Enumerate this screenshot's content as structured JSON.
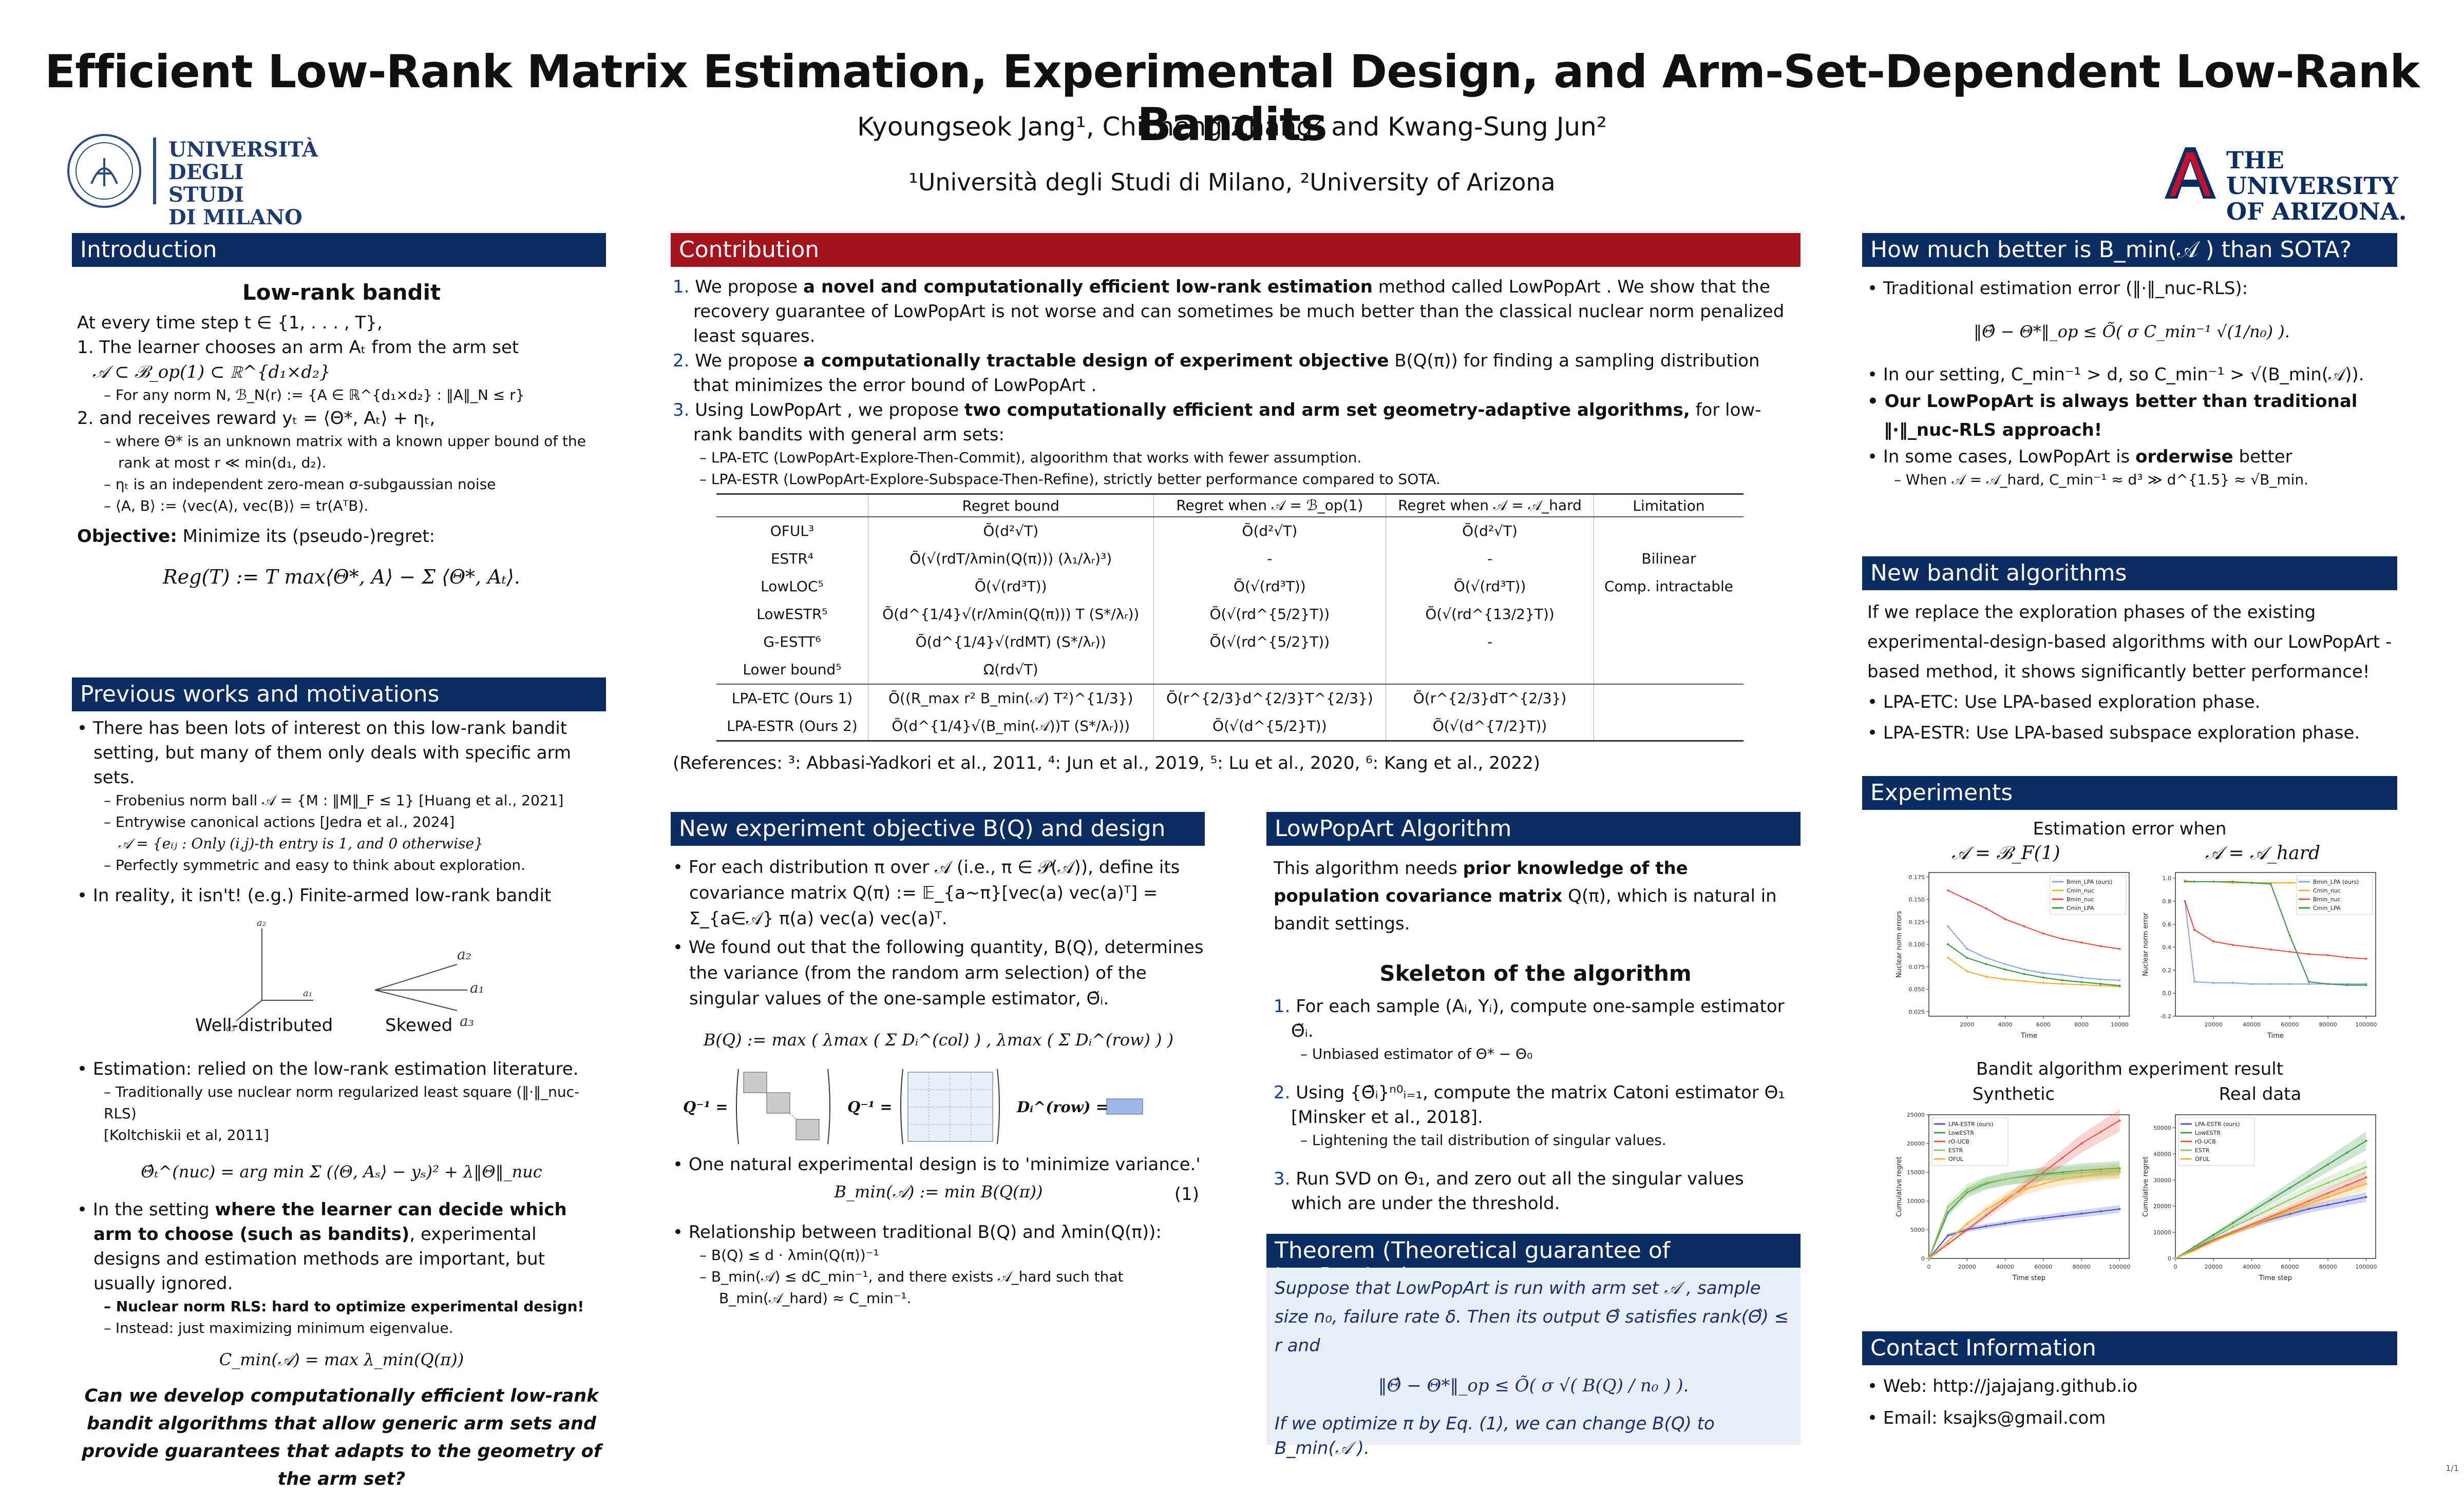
{
  "title": "Efficient Low-Rank Matrix Estimation, Experimental Design, and Arm-Set-Dependent Low-Rank Bandits",
  "authors": "Kyoungseok Jang¹, Chicheng Zhang² and Kwang-Sung Jun²",
  "affiliations": "¹Università degli Studi di Milano, ²University of Arizona",
  "logos": {
    "milano": [
      "UNIVERSITÀ",
      "DEGLI STUDI",
      "DI MILANO"
    ],
    "arizona": [
      "THE UNIVERSITY",
      "OF ARIZONA."
    ]
  },
  "intro": {
    "head": "Introduction",
    "subtitle": "Low-rank bandit",
    "lines": [
      "At every time step t ∈ {1, . . . , T},",
      "1. The learner chooses an arm Aₜ from the arm set",
      "𝒜 ⊂ ℬ_op(1) ⊂ ℝ^{d₁×d₂}",
      "– For any norm N, ℬ_N(r) := {A ∈ ℝ^{d₁×d₂} : ‖A‖_N ≤ r}",
      "2. and receives reward yₜ = ⟨Θ*, Aₜ⟩ + ηₜ,",
      "– where Θ* is an unknown matrix with a known upper bound of the",
      "rank at most r ≪ min(d₁, d₂).",
      "– ηₜ is an independent zero-mean σ-subgaussian noise",
      "– ⟨A, B⟩ := ⟨vec(A), vec(B)⟩ = tr(AᵀB)."
    ],
    "objective_label": "Objective:",
    "objective_text": " Minimize its (pseudo-)regret:",
    "regret_formula": "Reg(T) := T max⟨Θ*, A⟩ − Σ ⟨Θ*, Aₜ⟩."
  },
  "prev": {
    "head": "Previous works and motivations",
    "b1": "There has been lots of interest on this low-rank bandit setting, but many of them only deals with specific arm sets.",
    "b1_subs": [
      "– Frobenius norm ball 𝒜 = {M : ‖M‖_F ≤ 1} [Huang et al., 2021]",
      "– Entrywise canonical actions [Jedra et al., 2024]",
      "𝒜 = {eᵢⱼ : Only (i,j)-th entry is 1, and 0 otherwise}",
      "– Perfectly symmetric and easy to think about exploration."
    ],
    "b2": "In reality, it isn't! (e.g.) Finite-armed low-rank bandit",
    "fig_labels": [
      "Well-distributed",
      "Skewed"
    ],
    "fig_marks": [
      "a₂",
      "a₁",
      "a₃",
      "a₂",
      "a₁",
      "a₃"
    ],
    "b3": "Estimation: relied on the low-rank estimation literature.",
    "b3_subs": [
      "– Traditionally use nuclear norm regularized least square (‖·‖_nuc-RLS)",
      "[Koltchiskii et al, 2011]"
    ],
    "nuc_formula": "Θ̂ₜ^(nuc) = arg min Σ (⟨Θ, Aₛ⟩ − yₛ)² + λ‖Θ‖_nuc",
    "b4_pre": "In the setting ",
    "b4_bold": "where the learner can decide which arm to choose (such as bandits)",
    "b4_post": ", experimental designs and estimation methods are important, but usually ignored.",
    "b4_sub1": "– Nuclear norm RLS: hard to optimize experimental design!",
    "b4_sub2": "– Instead: just maximizing minimum eigenvalue.",
    "cmin_formula": "C_min(𝒜) = max λ_min(Q(π))",
    "question": "Can we develop computationally efficient low-rank bandit algorithms that allow generic arm sets and provide guarantees that adapts to the geometry of the arm set?"
  },
  "contrib": {
    "head": "Contribution",
    "items": [
      {
        "n": "1.",
        "pre": "We propose ",
        "bold": "a novel and computationally efficient low-rank estimation",
        "post": " method called LowPopArt . We show that the recovery guarantee of LowPopArt  is not worse and can sometimes be much better than the classical nuclear norm penalized least squares."
      },
      {
        "n": "2.",
        "pre": "We propose ",
        "bold": "a computationally tractable design of experiment objective",
        "post": " B(Q(π)) for finding a sampling distribution that minimizes the error bound of LowPopArt ."
      },
      {
        "n": "3.",
        "pre": "Using LowPopArt , we propose ",
        "bold": "two computationally efficient and arm set geometry-adaptive algorithms,",
        "post": " for low-rank bandits with general arm sets:"
      }
    ],
    "subs": [
      "– LPA-ETC (LowPopArt-Explore-Then-Commit), algoorithm that works with fewer assumption.",
      "– LPA-ESTR (LowPopArt-Explore-Subspace-Then-Refine), strictly better performance compared to SOTA."
    ],
    "table": {
      "headers": [
        "",
        "Regret bound",
        "Regret when 𝒜 = ℬ_op(1)",
        "Regret when 𝒜 = 𝒜_hard",
        "Limitation"
      ],
      "rows": [
        [
          "OFUL³",
          "Õ(d²√T)",
          "Õ(d²√T)",
          "Õ(d²√T)",
          ""
        ],
        [
          "ESTR⁴",
          "Õ(√(rdT/λmin(Q(π))) (λ₁/λᵣ)³)",
          "-",
          "-",
          "Bilinear"
        ],
        [
          "LowLOC⁵",
          "Õ(√(rd³T))",
          "Õ(√(rd³T))",
          "Õ(√(rd³T))",
          "Comp. intractable"
        ],
        [
          "LowESTR⁵",
          "Õ(d^{1/4}√(r/λmin(Q(π))) T (S*/λᵣ))",
          "Õ(√(rd^{5/2}T))",
          "Õ(√(rd^{13/2}T))",
          ""
        ],
        [
          "G-ESTT⁶",
          "Õ(d^{1/4}√(rdMT) (S*/λᵣ))",
          "Õ(√(rd^{5/2}T))",
          "-",
          ""
        ],
        [
          "Lower bound⁵",
          "Ω(rd√T)",
          "",
          "",
          ""
        ],
        [
          "LPA-ETC (Ours 1)",
          "Õ((R_max r² B_min(𝒜) T²)^{1/3})",
          "Õ(r^{2/3}d^{2/3}T^{2/3})",
          "Õ(r^{2/3}dT^{2/3})",
          ""
        ],
        [
          "LPA-ESTR (Ours 2)",
          "Õ(d^{1/4}√(B_min(𝒜))T (S*/λᵣ)))",
          "Õ(√(d^{5/2}T))",
          "Õ(√(d^{7/2}T))",
          ""
        ]
      ]
    },
    "refs": "(References: ³: Abbasi-Yadkori et al., 2011, ⁴: Jun et al., 2019, ⁵: Lu et al., 2020, ⁶: Kang et al., 2022)"
  },
  "objective": {
    "head": "New experiment objective B(Q) and design",
    "b1": "For each distribution π over 𝒜 (i.e., π ∈ 𝒫(𝒜)), define its covariance matrix Q(π) := 𝔼_{a∼π}[vec(a) vec(a)ᵀ] = Σ_{a∈𝒜} π(a) vec(a) vec(a)ᵀ.",
    "b2": "We found out that the following quantity, B(Q), determines the variance (from the random arm selection) of the singular values of the one-sample estimator, Θ̃ᵢ.",
    "bq_formula": "B(Q) := max ( λmax ( Σ Dᵢ^(col) ) , λmax ( Σ Dᵢ^(row) ) )",
    "q_labels": [
      "Q⁻¹ =",
      "Q⁻¹ =",
      "Dᵢ^(row) ="
    ],
    "b3": "One natural experimental design is to 'minimize variance.'",
    "bmin_formula": "B_min(𝒜) := min B(Q(π))",
    "eq_no": "(1)",
    "b4": "Relationship between traditional B(Q) and λmin(Q(π)):",
    "b4_subs": [
      "– B(Q) ≤ d · λmin(Q(π))⁻¹",
      "– B_min(𝒜) ≤ dC_min⁻¹, and there exists 𝒜_hard such that",
      "B_min(𝒜_hard) ≈ C_min⁻¹."
    ]
  },
  "algo": {
    "head": "LowPopArt  Algorithm",
    "intro_pre": "This algorithm needs ",
    "intro_bold": "prior knowledge of the population covariance matrix",
    "intro_post": " Q(π), which is natural in bandit settings.",
    "subtitle": "Skeleton of the algorithm",
    "steps": [
      {
        "n": "1.",
        "text": "For each sample (Aᵢ, Yᵢ), compute one-sample estimator Θ̃ᵢ.",
        "sub": "– Unbiased estimator of Θ* − Θ₀"
      },
      {
        "n": "2.",
        "text": "Using {Θ̃ᵢ}ⁿ⁰ᵢ₌₁, compute the matrix Catoni estimator Θ₁ [Minsker et al., 2018].",
        "sub": "– Lightening the tail distribution of singular values."
      },
      {
        "n": "3.",
        "text": "Run SVD on Θ₁, and zero out all the singular values which are under the threshold.",
        "sub": ""
      }
    ]
  },
  "theorem": {
    "head": "Theorem (Theoretical guarantee of LowPopArt )",
    "text1": "Suppose that LowPopArt  is run with arm set 𝒜 , sample size n₀, failure rate δ. Then its output Θ̂ satisfies rank(Θ̂) ≤ r and",
    "formula": "‖Θ̂ − Θ*‖_op ≤ Õ( σ √( B(Q) / n₀ ) ).",
    "text2": "If we optimize π by Eq. (1), we can change B(Q) to B_min(𝒜 )."
  },
  "better": {
    "head": "How much better is B_min(𝒜 ) than SOTA?",
    "b1": "Traditional estimation error (‖·‖_nuc-RLS):",
    "formula": "‖Θ̂ − Θ*‖_op ≤ Õ( σ C_min⁻¹ √(1/n₀) ).",
    "b2": "In our setting, C_min⁻¹ > d, so C_min⁻¹ > √(B_min(𝒜)).",
    "b3": "Our LowPopArt  is always better than traditional ‖·‖_nuc-RLS approach!",
    "b4_pre": "In some cases, LowPopArt  is ",
    "b4_bold": "orderwise",
    "b4_post": " better",
    "b4_sub": "– When 𝒜 = 𝒜_hard, C_min⁻¹ ≈ d³ ≫ d^{1.5} ≈ √B_min."
  },
  "newalg": {
    "head": "New bandit algorithms",
    "text": "If we replace the exploration phases of the existing experimental-design-based algorithms with our LowPopArt -based method, it shows significantly better performance!",
    "b1": "LPA-ETC: Use LPA-based exploration phase.",
    "b2": "LPA-ESTR: Use LPA-based subspace exploration phase."
  },
  "experiments": {
    "head": "Experiments",
    "est_title": "Estimation error when",
    "est_left": "𝒜 = ℬ_F(1)",
    "est_right": "𝒜 = 𝒜_hard",
    "bandit_title": "Bandit algorithm experiment result",
    "bandit_left": "Synthetic",
    "bandit_right": "Real data"
  },
  "chart_data": [
    {
      "type": "line",
      "xlabel": "Time",
      "ylabel": "Nuclear norm errors",
      "x": [
        1000,
        2000,
        3000,
        4000,
        5000,
        6000,
        7000,
        8000,
        9000,
        10000
      ],
      "xlim": [
        0,
        10500
      ],
      "ylim": [
        0.02,
        0.18
      ],
      "xticks": [
        "2000",
        "4000",
        "6000",
        "8000",
        "10000"
      ],
      "yticks": [
        "0.025",
        "0.050",
        "0.075",
        "0.100",
        "0.125",
        "0.150",
        "0.175"
      ],
      "legend_position": "top-right",
      "series": [
        {
          "name": "Bmin_LPA (ours)",
          "color": "#8fa6e6",
          "values": [
            0.12,
            0.095,
            0.085,
            0.078,
            0.072,
            0.068,
            0.066,
            0.063,
            0.061,
            0.06
          ]
        },
        {
          "name": "Cmin_nuc",
          "color": "#f2b134",
          "values": [
            0.085,
            0.07,
            0.064,
            0.061,
            0.059,
            0.057,
            0.056,
            0.055,
            0.054,
            0.053
          ]
        },
        {
          "name": "Bmin_nuc",
          "color": "#e2554a",
          "values": [
            0.16,
            0.15,
            0.14,
            0.128,
            0.12,
            0.112,
            0.106,
            0.102,
            0.098,
            0.095
          ]
        },
        {
          "name": "Cmin_LPA",
          "color": "#3e9a4a",
          "values": [
            0.1,
            0.085,
            0.078,
            0.072,
            0.067,
            0.063,
            0.06,
            0.058,
            0.056,
            0.054
          ]
        }
      ]
    },
    {
      "type": "line",
      "xlabel": "Time",
      "ylabel": "Nuclear norm error",
      "x": [
        5000,
        10000,
        20000,
        30000,
        40000,
        50000,
        60000,
        70000,
        80000,
        90000,
        100000
      ],
      "xlim": [
        0,
        105000
      ],
      "ylim": [
        -0.2,
        1.05
      ],
      "xticks": [
        "20000",
        "40000",
        "60000",
        "80000",
        "100000"
      ],
      "yticks": [
        "-0.2",
        "0.0",
        "0.2",
        "0.4",
        "0.6",
        "0.8",
        "1.0"
      ],
      "legend_position": "top-right",
      "series": [
        {
          "name": "Bmin_LPA (ours)",
          "color": "#8fa6e6",
          "values": [
            0.8,
            0.1,
            0.09,
            0.09,
            0.08,
            0.08,
            0.08,
            0.08,
            0.08,
            0.08,
            0.08
          ]
        },
        {
          "name": "Cmin_nuc",
          "color": "#f2b134",
          "values": [
            0.98,
            0.97,
            0.97,
            0.96,
            0.96,
            0.96,
            0.96,
            0.96,
            0.96,
            0.96,
            0.96
          ]
        },
        {
          "name": "Bmin_nuc",
          "color": "#e2554a",
          "values": [
            0.8,
            0.55,
            0.45,
            0.42,
            0.4,
            0.38,
            0.36,
            0.34,
            0.33,
            0.31,
            0.3
          ]
        },
        {
          "name": "Cmin_LPA",
          "color": "#3e9a4a",
          "values": [
            0.97,
            0.97,
            0.97,
            0.97,
            0.96,
            0.95,
            0.5,
            0.1,
            0.08,
            0.07,
            0.07
          ]
        }
      ]
    },
    {
      "type": "line",
      "xlabel": "Time step",
      "ylabel": "Cumulative regret",
      "x": [
        0,
        10000,
        20000,
        30000,
        40000,
        50000,
        60000,
        70000,
        80000,
        90000,
        100000
      ],
      "xlim": [
        0,
        105000
      ],
      "ylim": [
        0,
        25000
      ],
      "xticks": [
        "0",
        "20000",
        "40000",
        "60000",
        "80000",
        "100000"
      ],
      "yticks": [
        "0",
        "5000",
        "10000",
        "15000",
        "20000",
        "25000"
      ],
      "legend_position": "top-left",
      "series": [
        {
          "name": "LPA-ESTR (ours)",
          "color": "#4a55c8",
          "values": [
            0,
            4000,
            5000,
            5600,
            6100,
            6600,
            7000,
            7400,
            7800,
            8200,
            8600
          ]
        },
        {
          "name": "LowESTR",
          "color": "#3e9a4a",
          "values": [
            0,
            8000,
            11500,
            13000,
            13800,
            14300,
            14700,
            15000,
            15300,
            15500,
            15700
          ]
        },
        {
          "name": "rO-UCB",
          "color": "#e2554a",
          "values": [
            0,
            2500,
            5000,
            7500,
            10000,
            12500,
            15000,
            17500,
            20000,
            22000,
            24000
          ]
        },
        {
          "name": "ESTR",
          "color": "#8fc46a",
          "values": [
            0,
            9000,
            12000,
            13200,
            13800,
            14200,
            14500,
            14700,
            14900,
            15100,
            15300
          ]
        },
        {
          "name": "OFUL",
          "color": "#f2b134",
          "values": [
            0,
            3000,
            6000,
            8500,
            10500,
            12000,
            13000,
            13800,
            14300,
            14700,
            15000
          ]
        }
      ]
    },
    {
      "type": "line",
      "xlabel": "Time step",
      "ylabel": "Cumulative regret",
      "x": [
        0,
        10000,
        20000,
        30000,
        40000,
        50000,
        60000,
        70000,
        80000,
        90000,
        100000
      ],
      "xlim": [
        0,
        105000
      ],
      "ylim": [
        0,
        55000
      ],
      "xticks": [
        "0",
        "20000",
        "40000",
        "60000",
        "80000",
        "100000"
      ],
      "yticks": [
        "0",
        "10000",
        "20000",
        "30000",
        "40000",
        "50000"
      ],
      "legend_position": "top-left",
      "series": [
        {
          "name": "LPA-ESTR (ours)",
          "color": "#4a55c8",
          "values": [
            0,
            4000,
            7000,
            10000,
            12500,
            15000,
            17000,
            19000,
            20500,
            22000,
            23500
          ]
        },
        {
          "name": "LowESTR",
          "color": "#3e9a4a",
          "values": [
            0,
            4500,
            9000,
            13500,
            18000,
            22500,
            27000,
            31500,
            36000,
            40500,
            45000
          ]
        },
        {
          "name": "rO-UCB",
          "color": "#e2554a",
          "values": [
            0,
            3500,
            7000,
            10000,
            13000,
            16000,
            19000,
            22000,
            25000,
            28000,
            31000
          ]
        },
        {
          "name": "ESTR",
          "color": "#8fc46a",
          "values": [
            0,
            4000,
            8000,
            12000,
            15500,
            19000,
            22500,
            26000,
            29000,
            32000,
            35000
          ]
        },
        {
          "name": "OFUL",
          "color": "#f2b134",
          "values": [
            0,
            3000,
            6500,
            9500,
            12500,
            15500,
            18500,
            21000,
            23500,
            26000,
            28500
          ]
        }
      ]
    }
  ],
  "contact": {
    "head": "Contact Information",
    "web": "Web: http://jajajang.github.io",
    "email": "Email: ksajks@gmail.com"
  },
  "page_number": "1/1"
}
